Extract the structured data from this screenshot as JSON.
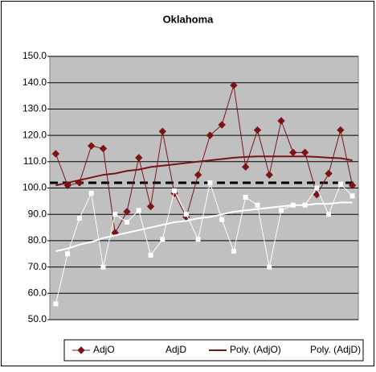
{
  "chart_data": {
    "type": "line",
    "title": "Oklahoma",
    "categories": [
      null,
      null,
      null,
      null,
      null,
      null,
      null,
      null,
      null,
      null,
      null,
      null,
      null,
      null,
      null,
      null,
      null,
      null,
      null,
      null,
      null,
      null,
      null,
      null,
      null,
      null
    ],
    "series": [
      {
        "name": "AdjO",
        "color": "#7b1416",
        "marker": "diamond",
        "line": true,
        "values": [
          113,
          101,
          102,
          116,
          115,
          83,
          91,
          111.5,
          93,
          121.5,
          98,
          89,
          105,
          120,
          124,
          139,
          108,
          122,
          105,
          125.5,
          113.5,
          113.5,
          97.5,
          105.5,
          122,
          101
        ]
      },
      {
        "name": "AdjD",
        "color": "#ffffff",
        "marker": "square",
        "line": true,
        "values": [
          56,
          75,
          88.5,
          98,
          70,
          90,
          87,
          91.5,
          74.5,
          80.5,
          99,
          90,
          80.5,
          102,
          88,
          76,
          96.5,
          93.5,
          70,
          91.5,
          93.5,
          93.5,
          100,
          90,
          101.5,
          97
        ]
      },
      {
        "name": "Poly. (AdjO)",
        "color": "#7b1416",
        "marker": null,
        "line": true,
        "width": 2,
        "values": [
          101,
          102,
          103,
          104,
          105,
          105.5,
          106.5,
          107,
          108,
          108.5,
          109,
          109.5,
          110,
          110.5,
          111,
          111.5,
          111.8,
          112,
          112,
          112,
          112,
          112,
          111.8,
          111.5,
          111.3,
          110.5
        ]
      },
      {
        "name": "Poly. (AdjD)",
        "color": "#ffffff",
        "marker": null,
        "line": true,
        "width": 2,
        "values": [
          76,
          77,
          78.5,
          79.5,
          81,
          82,
          83,
          84,
          85,
          86,
          87,
          87.5,
          88.5,
          89,
          90,
          91,
          91.5,
          92,
          92.5,
          93,
          93.5,
          93.5,
          94,
          94,
          94.5,
          94.5
        ]
      }
    ],
    "reference_value": 102,
    "ylim": [
      50,
      150
    ],
    "yticks": [
      {
        "value": 50,
        "label": "50.0"
      },
      {
        "value": 60,
        "label": "60.0"
      },
      {
        "value": 70,
        "label": "70.0"
      },
      {
        "value": 80,
        "label": "80.0"
      },
      {
        "value": 90,
        "label": "90.0"
      },
      {
        "value": 100,
        "label": "100.0"
      },
      {
        "value": 110,
        "label": "110.0"
      },
      {
        "value": 120,
        "label": "120.0"
      },
      {
        "value": 130,
        "label": "130.0"
      },
      {
        "value": 140,
        "label": "140.0"
      },
      {
        "value": 150,
        "label": "150.0"
      }
    ],
    "grid": true,
    "legend": "bottom"
  }
}
